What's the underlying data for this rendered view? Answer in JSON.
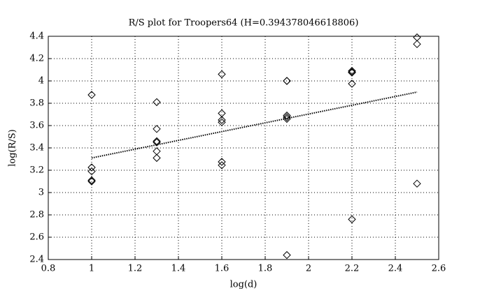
{
  "chart_data": {
    "type": "scatter",
    "title": "R/S plot for Troopers64 (H=0.394378046618806)",
    "x_label": "log(d)",
    "y_label": "log(R/S)",
    "series": [
      {
        "name": null,
        "kind": "points",
        "marker": "diamond",
        "color": "#000000",
        "x": [
          1.0,
          1.0,
          1.0,
          1.0,
          1.0,
          1.3,
          1.3,
          1.3,
          1.3,
          1.3,
          1.3,
          1.6,
          1.6,
          1.6,
          1.6,
          1.6,
          1.6,
          1.9,
          1.9,
          1.9,
          1.9,
          1.9,
          1.9,
          2.2,
          2.2,
          2.2,
          2.2,
          2.2,
          2.5,
          2.5,
          2.5
        ],
        "values": [
          3.875,
          3.225,
          3.19,
          3.11,
          3.1,
          3.81,
          3.57,
          3.46,
          3.45,
          3.37,
          3.31,
          4.06,
          3.71,
          3.65,
          3.63,
          3.275,
          3.245,
          4.0,
          4.0,
          3.69,
          3.675,
          3.66,
          2.44,
          4.09,
          4.08,
          4.075,
          3.975,
          2.76,
          4.39,
          4.33,
          3.08
        ]
      },
      {
        "name": null,
        "kind": "line",
        "color": "#000000",
        "x": [
          1.0,
          2.5
        ],
        "values": [
          3.31,
          3.9
        ]
      }
    ],
    "xlim": [
      0.8,
      2.6
    ],
    "xticks": [
      0.8,
      1,
      1.2,
      1.4,
      1.6,
      1.8,
      2,
      2.2,
      2.4,
      2.6
    ],
    "ylim": [
      2.4,
      4.4
    ],
    "yticks": [
      2.4,
      2.6,
      2.8,
      3,
      3.2,
      3.4,
      3.6,
      3.8,
      4,
      4.2,
      4.4
    ],
    "grid": true
  }
}
